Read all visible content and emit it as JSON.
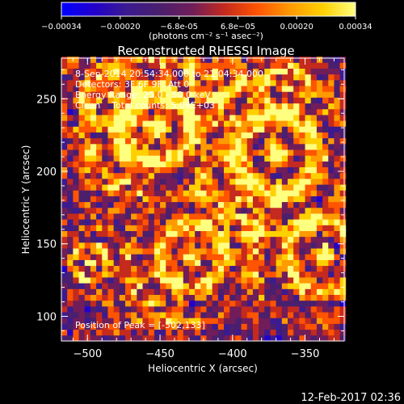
{
  "colorbar": {
    "ticks": [
      "-0.00034",
      "-0.00020",
      "-6.8e-05",
      "6.8e-05",
      "0.00020",
      "0.00034"
    ],
    "units": "(photons cm⁻² s⁻¹ asec⁻²)",
    "range": [
      -0.00034,
      0.00034
    ],
    "colormap": [
      "#0000ff",
      "#2200cc",
      "#3b1b8f",
      "#4a1f6e",
      "#701d5a",
      "#c42a1e",
      "#ff5400",
      "#ff9a00",
      "#ffd000",
      "#ffff80"
    ]
  },
  "overlay": {
    "line1": "8-Sep-2014 20:54:34.000 to 21:04:34.000",
    "line2": "Detectors: 3F 6F 9F, Att 0",
    "line3": "Energy Range: 25.0 - 50.0 keV",
    "line4": "Clean    Total counts: 5.06E+03",
    "peak": "Position of Peak = [-502,133]"
  },
  "footer": {
    "timestamp": "12-Feb-2017 02:36"
  },
  "chart_data": {
    "type": "heatmap",
    "title": "Reconstructed RHESSI Image",
    "xlabel": "Heliocentric X (arcsec)",
    "ylabel": "Heliocentric Y (arcsec)",
    "xlim": [
      -518,
      -323
    ],
    "ylim": [
      83,
      278
    ],
    "x_ticks": [
      -500,
      -450,
      -400,
      -350
    ],
    "y_ticks": [
      100,
      150,
      200,
      250
    ],
    "x_tick_labels": [
      "−500",
      "−450",
      "−400",
      "−350"
    ],
    "y_tick_labels": [
      "100",
      "150",
      "200",
      "250"
    ],
    "grid": false,
    "peak_position": [
      -502,
      133
    ],
    "cell_size": 4
  }
}
